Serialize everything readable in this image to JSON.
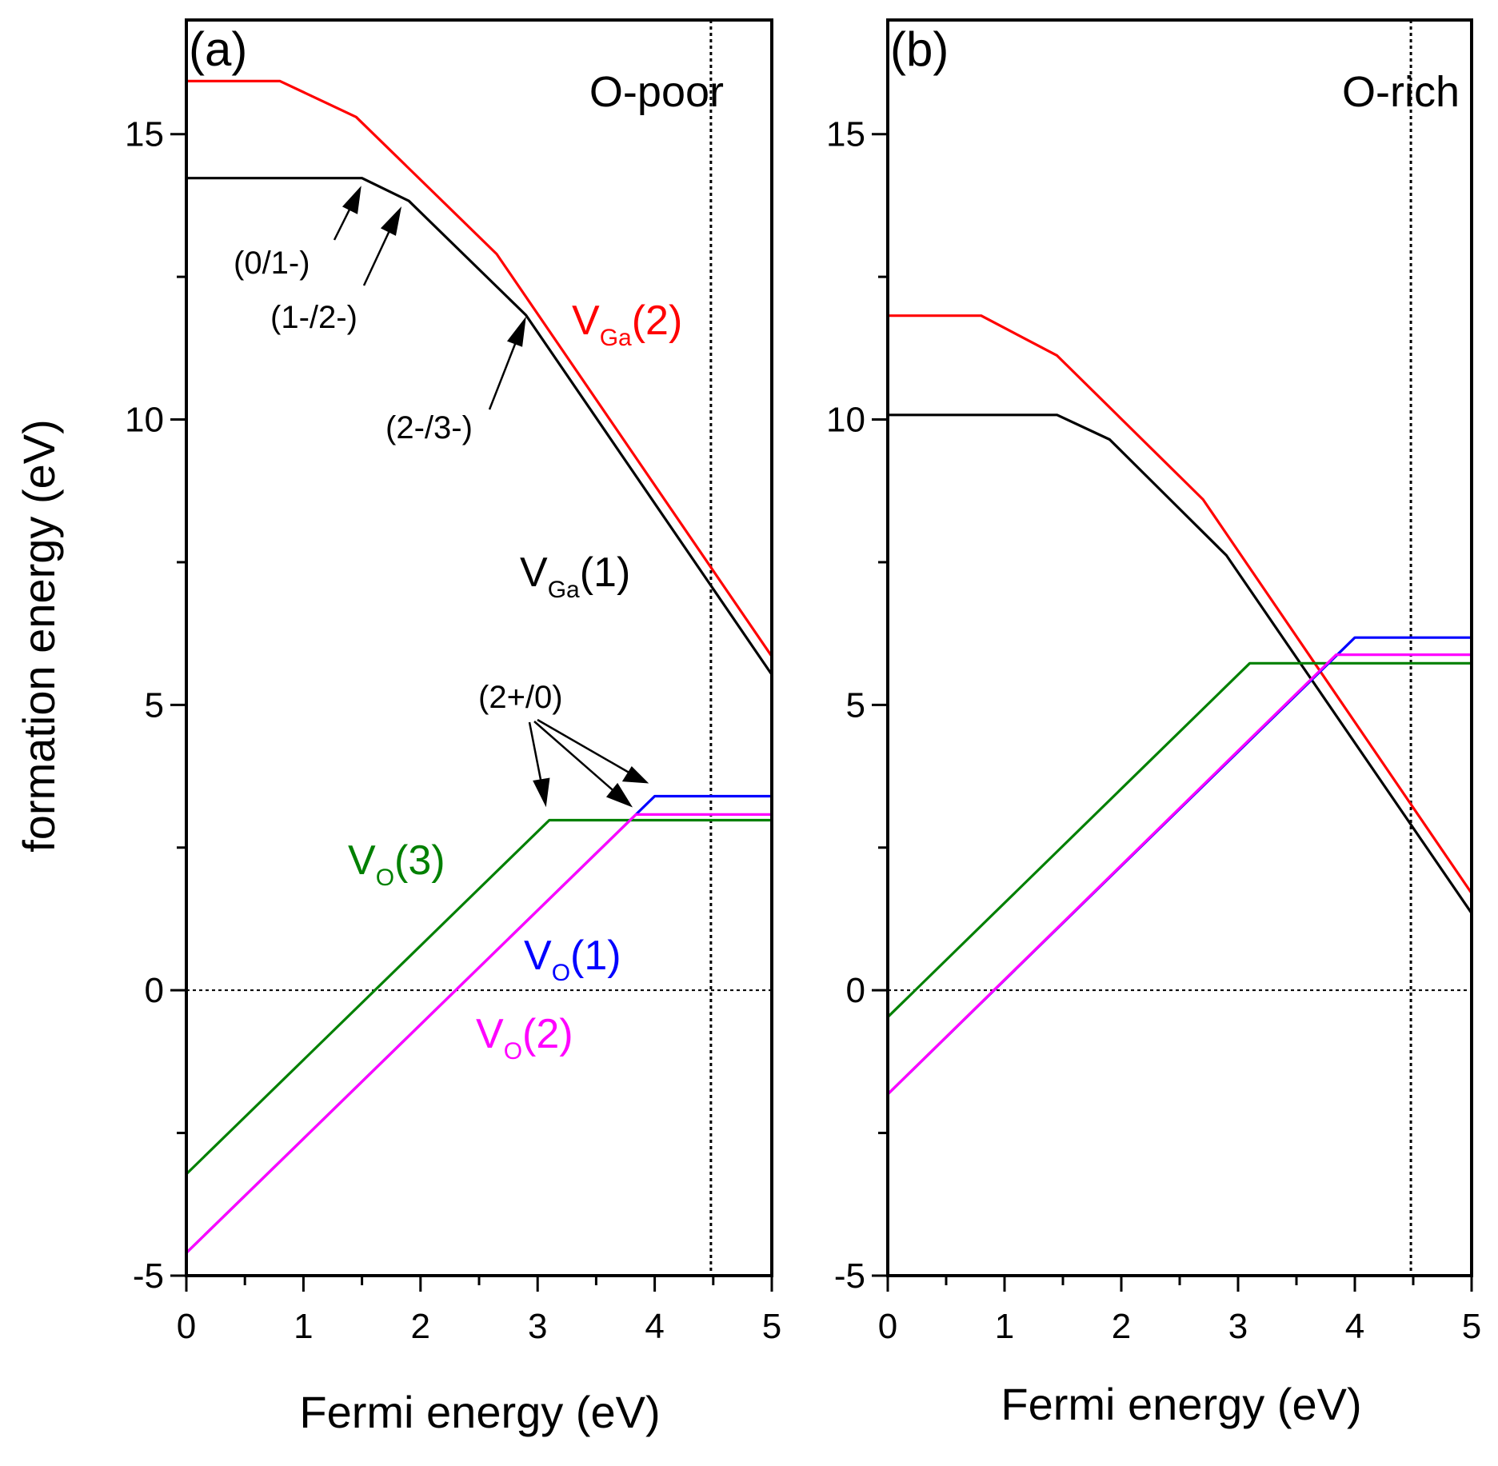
{
  "chart_data": [
    {
      "type": "line",
      "panel_label": "(a)",
      "condition": "O-poor",
      "xlabel": "Fermi energy (eV)",
      "ylabel": "formation energy (eV)",
      "xlim": [
        0,
        5
      ],
      "ylim": [
        -5,
        17
      ],
      "x_ticks": [
        "0",
        "1",
        "2",
        "3",
        "4",
        "5"
      ],
      "y_ticks": [
        "-5",
        "0",
        "5",
        "10",
        "15"
      ],
      "reference_lines": {
        "horizontal_y": 0,
        "vertical_x": 4.48
      },
      "series": [
        {
          "name": "VGa(2)",
          "base": "V",
          "sub": "Ga",
          "suffix": "(2)",
          "color": "#ff0000",
          "points": [
            [
              0,
              15.93
            ],
            [
              0.8,
              15.93
            ],
            [
              1.45,
              15.3
            ],
            [
              2.65,
              12.9
            ],
            [
              5,
              5.85
            ]
          ]
        },
        {
          "name": "VGa(1)",
          "base": "V",
          "sub": "Ga",
          "suffix": "(1)",
          "color": "#000000",
          "points": [
            [
              0,
              14.23
            ],
            [
              1.5,
              14.23
            ],
            [
              1.9,
              13.83
            ],
            [
              2.9,
              11.83
            ],
            [
              5,
              5.53
            ]
          ]
        },
        {
          "name": "VO(3)",
          "base": "V",
          "sub": "O",
          "suffix": "(3)",
          "color": "#008000",
          "points": [
            [
              0,
              -3.22
            ],
            [
              3.1,
              2.98
            ],
            [
              5,
              2.98
            ]
          ]
        },
        {
          "name": "VO(1)",
          "base": "V",
          "sub": "O",
          "suffix": "(1)",
          "color": "#0000ff",
          "points": [
            [
              0,
              -4.6
            ],
            [
              4.0,
              3.4
            ],
            [
              5,
              3.4
            ]
          ]
        },
        {
          "name": "VO(2)",
          "base": "V",
          "sub": "O",
          "suffix": "(2)",
          "color": "#ff00ff",
          "points": [
            [
              0,
              -4.6
            ],
            [
              3.84,
              3.08
            ],
            [
              5,
              3.08
            ]
          ]
        }
      ],
      "annotations": [
        "(0/1-)",
        "(1-/2-)",
        "(2-/3-)",
        "(2+/0)"
      ]
    },
    {
      "type": "line",
      "panel_label": "(b)",
      "condition": "O-rich",
      "xlabel": "Fermi energy (eV)",
      "ylabel": "",
      "xlim": [
        0,
        5
      ],
      "ylim": [
        -5,
        17
      ],
      "x_ticks": [
        "0",
        "1",
        "2",
        "3",
        "4",
        "5"
      ],
      "y_ticks": [
        "-5",
        "0",
        "5",
        "10",
        "15"
      ],
      "reference_lines": {
        "horizontal_y": 0,
        "vertical_x": 4.48
      },
      "series": [
        {
          "name": "VGa(2)",
          "color": "#ff0000",
          "points": [
            [
              0,
              11.82
            ],
            [
              0.8,
              11.82
            ],
            [
              1.45,
              11.12
            ],
            [
              2.7,
              8.6
            ],
            [
              5,
              1.7
            ]
          ]
        },
        {
          "name": "VGa(1)",
          "color": "#000000",
          "points": [
            [
              0,
              10.08
            ],
            [
              1.45,
              10.08
            ],
            [
              1.9,
              9.65
            ],
            [
              2.9,
              7.62
            ],
            [
              5,
              1.35
            ]
          ]
        },
        {
          "name": "VO(3)",
          "color": "#008000",
          "points": [
            [
              0,
              -0.47
            ],
            [
              3.1,
              5.73
            ],
            [
              5,
              5.73
            ]
          ]
        },
        {
          "name": "VO(1)",
          "color": "#0000ff",
          "points": [
            [
              0,
              -1.82
            ],
            [
              4.0,
              6.18
            ],
            [
              5,
              6.18
            ]
          ]
        },
        {
          "name": "VO(2)",
          "color": "#ff00ff",
          "points": [
            [
              0,
              -1.82
            ],
            [
              3.84,
              5.88
            ],
            [
              5,
              5.88
            ]
          ]
        }
      ]
    }
  ]
}
